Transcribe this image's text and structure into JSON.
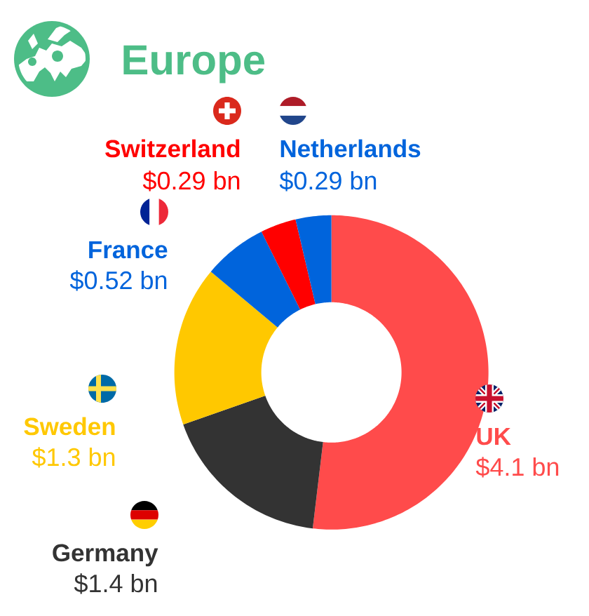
{
  "chart_data": {
    "type": "donut",
    "title": "Europe",
    "categories": [
      "UK",
      "Germany",
      "Sweden",
      "France",
      "Switzerland",
      "Netherlands"
    ],
    "values": [
      4.1,
      1.4,
      1.3,
      0.52,
      0.29,
      0.29
    ],
    "colors": [
      "#ff4b4b",
      "#333333",
      "#ffc800",
      "#0064dc",
      "#ff0000",
      "#0064dc"
    ],
    "value_labels": [
      "$4.1 bn",
      "$1.4 bn",
      "$1.3 bn",
      "$0.52 bn",
      "$0.29 bn",
      "$0.29 bn"
    ]
  }
}
